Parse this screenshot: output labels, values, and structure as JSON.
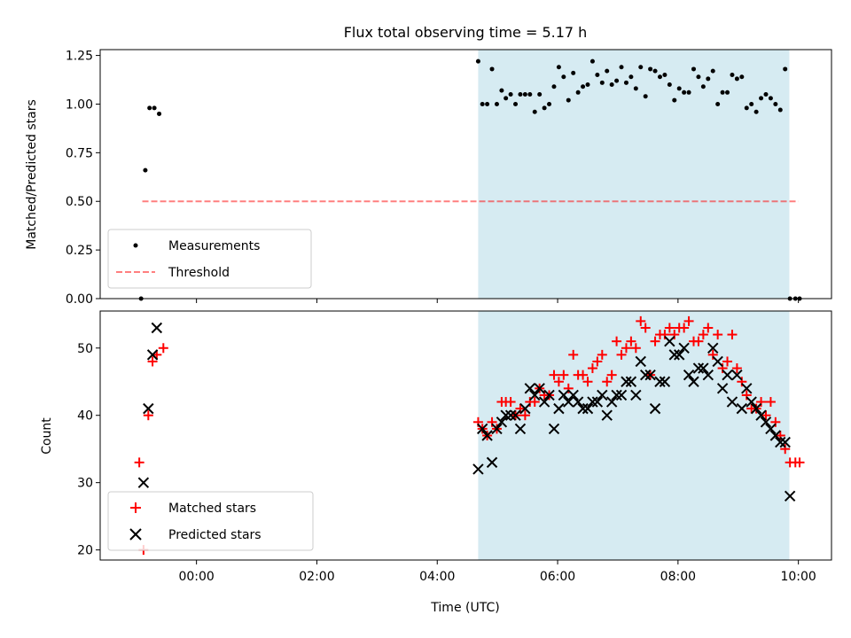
{
  "chart_data": [
    {
      "type": "scatter",
      "title": "Flux total observing time = 5.17 h",
      "xlabel": "",
      "ylabel": "Matched/Predicted stars",
      "xlim": [
        -1.6,
        10.55
      ],
      "ylim": [
        0,
        1.28
      ],
      "yticks": [
        0,
        0.25,
        0.5,
        0.75,
        1.0,
        1.25
      ],
      "ytick_labels": [
        "0.00",
        "0.25",
        "0.50",
        "0.75",
        "1.00",
        "1.25"
      ],
      "shaded_x": [
        4.68,
        9.85
      ],
      "colors": {
        "shade": "#add8e6",
        "threshold": "#ff0000",
        "points": "#000000"
      },
      "legend": {
        "position": "lower-left",
        "entries": [
          "Measurements",
          "Threshold"
        ]
      },
      "threshold": {
        "name": "Threshold",
        "x": [
          -0.9,
          10.0
        ],
        "y": 0.5
      },
      "series": [
        {
          "name": "Measurements",
          "x": [
            -0.92,
            -0.85,
            -0.78,
            -0.7,
            -0.62,
            4.68,
            4.75,
            4.83,
            4.91,
            4.99,
            5.07,
            5.14,
            5.22,
            5.3,
            5.38,
            5.46,
            5.54,
            5.62,
            5.7,
            5.78,
            5.86,
            5.94,
            6.02,
            6.1,
            6.18,
            6.26,
            6.34,
            6.42,
            6.5,
            6.58,
            6.66,
            6.74,
            6.82,
            6.9,
            6.98,
            7.06,
            7.14,
            7.22,
            7.3,
            7.38,
            7.46,
            7.54,
            7.62,
            7.7,
            7.78,
            7.86,
            7.94,
            8.02,
            8.1,
            8.18,
            8.26,
            8.34,
            8.42,
            8.5,
            8.58,
            8.66,
            8.74,
            8.82,
            8.9,
            8.98,
            9.06,
            9.14,
            9.22,
            9.3,
            9.38,
            9.46,
            9.54,
            9.62,
            9.7,
            9.78,
            9.86,
            9.95,
            10.02
          ],
          "y": [
            0.0,
            0.66,
            0.98,
            0.98,
            0.95,
            1.22,
            1.0,
            1.0,
            1.18,
            1.0,
            1.07,
            1.03,
            1.05,
            1.0,
            1.05,
            1.05,
            1.05,
            0.96,
            1.05,
            0.98,
            1.0,
            1.09,
            1.19,
            1.14,
            1.02,
            1.16,
            1.06,
            1.09,
            1.1,
            1.22,
            1.15,
            1.11,
            1.17,
            1.1,
            1.12,
            1.19,
            1.11,
            1.14,
            1.08,
            1.19,
            1.04,
            1.18,
            1.17,
            1.14,
            1.15,
            1.1,
            1.02,
            1.08,
            1.06,
            1.06,
            1.18,
            1.14,
            1.09,
            1.13,
            1.17,
            1.0,
            1.06,
            1.06,
            1.15,
            1.13,
            1.14,
            0.98,
            1.0,
            0.96,
            1.03,
            1.05,
            1.03,
            1.0,
            0.97,
            1.18,
            0.0,
            0.0,
            0.0
          ]
        }
      ]
    },
    {
      "type": "scatter",
      "title": "",
      "xlabel": "Time (UTC)",
      "ylabel": "Count",
      "xlim": [
        -1.6,
        10.55
      ],
      "ylim": [
        18.5,
        55.5
      ],
      "yticks": [
        20,
        30,
        40,
        50
      ],
      "ytick_labels": [
        "20",
        "30",
        "40",
        "50"
      ],
      "xticks": [
        0,
        2,
        4,
        6,
        8,
        10
      ],
      "xtick_labels": [
        "00:00",
        "02:00",
        "04:00",
        "06:00",
        "08:00",
        "10:00"
      ],
      "shaded_x": [
        4.68,
        9.85
      ],
      "colors": {
        "shade": "#add8e6",
        "matched": "#ff0000",
        "predicted": "#000000"
      },
      "legend": {
        "position": "lower-left",
        "entries": [
          "Matched stars",
          "Predicted stars"
        ]
      },
      "series": [
        {
          "name": "Matched stars",
          "marker": "plus",
          "x": [
            -0.95,
            -0.88,
            -0.8,
            -0.73,
            -0.66,
            -0.55,
            4.68,
            4.75,
            4.83,
            4.91,
            4.99,
            5.07,
            5.14,
            5.22,
            5.3,
            5.38,
            5.46,
            5.54,
            5.62,
            5.7,
            5.78,
            5.86,
            5.94,
            6.02,
            6.1,
            6.18,
            6.26,
            6.34,
            6.42,
            6.5,
            6.58,
            6.66,
            6.74,
            6.82,
            6.9,
            6.98,
            7.06,
            7.14,
            7.22,
            7.3,
            7.38,
            7.46,
            7.54,
            7.62,
            7.7,
            7.78,
            7.86,
            7.94,
            8.02,
            8.1,
            8.18,
            8.26,
            8.34,
            8.42,
            8.5,
            8.58,
            8.66,
            8.74,
            8.82,
            8.9,
            8.98,
            9.06,
            9.14,
            9.22,
            9.3,
            9.38,
            9.46,
            9.54,
            9.62,
            9.7,
            9.78,
            9.86,
            9.95,
            10.02
          ],
          "y": [
            33,
            20,
            40,
            48,
            49,
            50,
            39,
            38,
            37,
            39,
            38,
            42,
            42,
            42,
            40,
            41,
            40,
            42,
            42,
            44,
            43,
            43,
            46,
            45,
            46,
            44,
            49,
            46,
            46,
            45,
            47,
            48,
            49,
            45,
            46,
            51,
            49,
            50,
            51,
            50,
            54,
            53,
            46,
            51,
            52,
            52,
            53,
            52,
            53,
            53,
            54,
            51,
            51,
            52,
            53,
            49,
            52,
            47,
            48,
            52,
            47,
            45,
            43,
            41,
            41,
            42,
            40,
            42,
            39,
            37,
            35,
            33,
            33,
            33
          ]
        },
        {
          "name": "Predicted stars",
          "marker": "x",
          "x": [
            -0.88,
            -0.8,
            -0.73,
            -0.66,
            4.68,
            4.75,
            4.83,
            4.91,
            4.99,
            5.07,
            5.14,
            5.22,
            5.3,
            5.38,
            5.46,
            5.54,
            5.62,
            5.7,
            5.78,
            5.86,
            5.94,
            6.02,
            6.1,
            6.18,
            6.26,
            6.34,
            6.42,
            6.5,
            6.58,
            6.66,
            6.74,
            6.82,
            6.9,
            6.98,
            7.06,
            7.14,
            7.22,
            7.3,
            7.38,
            7.46,
            7.54,
            7.62,
            7.7,
            7.78,
            7.86,
            7.94,
            8.02,
            8.1,
            8.18,
            8.26,
            8.34,
            8.42,
            8.5,
            8.58,
            8.66,
            8.74,
            8.82,
            8.9,
            8.98,
            9.06,
            9.14,
            9.22,
            9.3,
            9.38,
            9.46,
            9.54,
            9.62,
            9.7,
            9.78,
            9.86
          ],
          "y": [
            30,
            41,
            49,
            53,
            32,
            38,
            37,
            33,
            38,
            39,
            40,
            40,
            40,
            38,
            41,
            44,
            43,
            44,
            42,
            43,
            38,
            41,
            43,
            42,
            43,
            42,
            41,
            41,
            42,
            42,
            43,
            40,
            42,
            43,
            43,
            45,
            45,
            43,
            48,
            46,
            46,
            41,
            45,
            45,
            51,
            49,
            49,
            50,
            46,
            45,
            47,
            47,
            46,
            50,
            48,
            44,
            46,
            42,
            46,
            41,
            44,
            42,
            41,
            40,
            39,
            38,
            37,
            36,
            36,
            28
          ]
        }
      ]
    }
  ]
}
